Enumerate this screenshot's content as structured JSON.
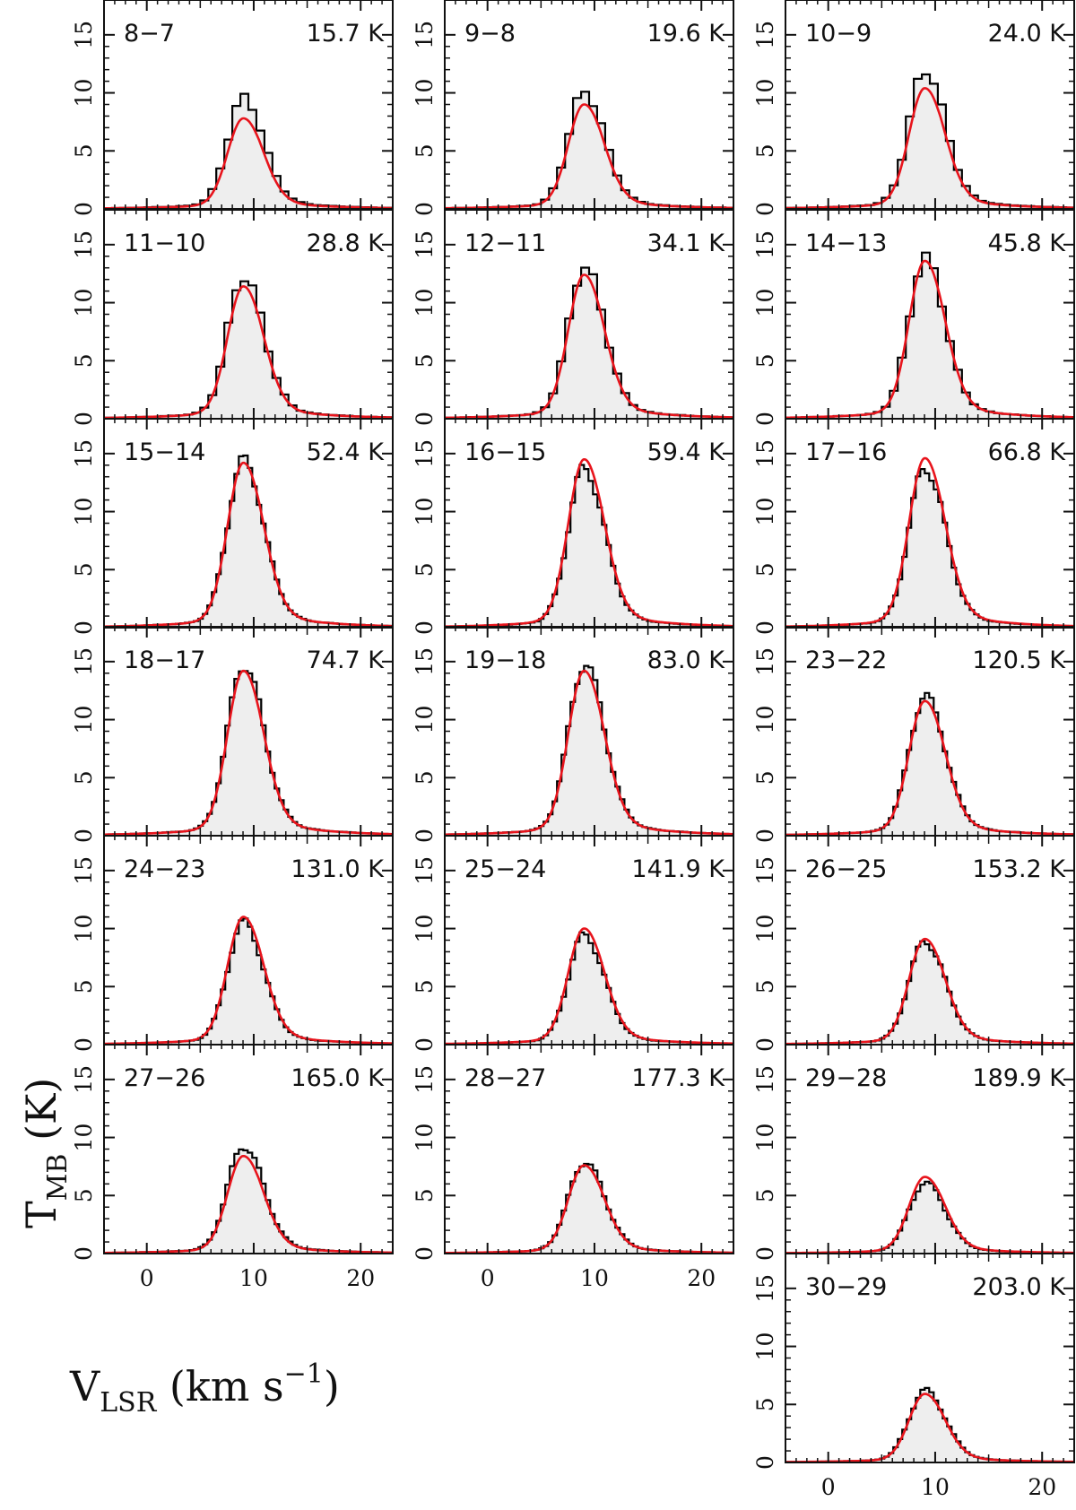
{
  "y_axis_label": {
    "main": "T",
    "sub": "MB",
    "unit": " (K)"
  },
  "x_axis_label": {
    "main": "V",
    "sub": "LSR",
    "unit_a": " (km s",
    "sup": "−1",
    "unit_b": ")"
  },
  "chart_data": {
    "type": "step-line",
    "layout": "grid of spectra, 3 columns",
    "xlim": [
      -4,
      23
    ],
    "ylim": [
      0,
      18
    ],
    "xticks": [
      0,
      10,
      20
    ],
    "yticks": [
      0,
      5,
      10,
      15
    ],
    "x_tick_labels": [
      "0",
      "10",
      "20"
    ],
    "y_tick_labels": [
      "0",
      "5",
      "10",
      "15"
    ],
    "xlabel": "V_LSR (km s^-1)",
    "ylabel": "T_MB (K)",
    "observed_style": {
      "stroke": "#000000",
      "fill": "#eeeeee"
    },
    "model_style": {
      "stroke": "#e8141c"
    },
    "panels": [
      {
        "transition": "8−7",
        "temperature": "15.7 K",
        "col": 0,
        "row": 0,
        "obs_peak": 9.6,
        "model_peak": 7.8
      },
      {
        "transition": "9−8",
        "temperature": "19.6 K",
        "col": 1,
        "row": 0,
        "obs_peak": 10.1,
        "model_peak": 9.0
      },
      {
        "transition": "10−9",
        "temperature": "24.0 K",
        "col": 2,
        "row": 0,
        "obs_peak": 12.0,
        "model_peak": 10.4
      },
      {
        "transition": "11−10",
        "temperature": "28.8 K",
        "col": 0,
        "row": 1,
        "obs_peak": 12.3,
        "model_peak": 11.4
      },
      {
        "transition": "12−11",
        "temperature": "34.1 K",
        "col": 1,
        "row": 1,
        "obs_peak": 13.1,
        "model_peak": 12.4
      },
      {
        "transition": "14−13",
        "temperature": "45.8 K",
        "col": 2,
        "row": 1,
        "obs_peak": 13.9,
        "model_peak": 13.6
      },
      {
        "transition": "15−14",
        "temperature": "52.4 K",
        "col": 0,
        "row": 2,
        "obs_peak": 14.4,
        "model_peak": 14.2
      },
      {
        "transition": "16−15",
        "temperature": "59.4 K",
        "col": 1,
        "row": 2,
        "obs_peak": 13.7,
        "model_peak": 14.5
      },
      {
        "transition": "17−16",
        "temperature": "66.8 K",
        "col": 2,
        "row": 2,
        "obs_peak": 13.8,
        "model_peak": 14.6
      },
      {
        "transition": "18−17",
        "temperature": "74.7 K",
        "col": 0,
        "row": 3,
        "obs_peak": 14.8,
        "model_peak": 14.2
      },
      {
        "transition": "19−18",
        "temperature": "83.0 K",
        "col": 1,
        "row": 3,
        "obs_peak": 14.8,
        "model_peak": 14.2
      },
      {
        "transition": "23−22",
        "temperature": "120.5 K",
        "col": 2,
        "row": 3,
        "obs_peak": 12.0,
        "model_peak": 11.6
      },
      {
        "transition": "24−23",
        "temperature": "131.0 K",
        "col": 0,
        "row": 4,
        "obs_peak": 10.5,
        "model_peak": 11.0
      },
      {
        "transition": "25−24",
        "temperature": "141.9 K",
        "col": 1,
        "row": 4,
        "obs_peak": 9.4,
        "model_peak": 10.0
      },
      {
        "transition": "26−25",
        "temperature": "153.2 K",
        "col": 2,
        "row": 4,
        "obs_peak": 8.9,
        "model_peak": 9.1
      },
      {
        "transition": "27−26",
        "temperature": "165.0 K",
        "col": 0,
        "row": 5,
        "obs_peak": 9.3,
        "model_peak": 8.4
      },
      {
        "transition": "28−27",
        "temperature": "177.3 K",
        "col": 1,
        "row": 5,
        "obs_peak": 7.9,
        "model_peak": 7.6
      },
      {
        "transition": "29−28",
        "temperature": "189.9 K",
        "col": 2,
        "row": 5,
        "obs_peak": 6.1,
        "model_peak": 6.6
      },
      {
        "transition": "30−29",
        "temperature": "203.0 K",
        "col": 2,
        "row": 6,
        "obs_peak": 6.2,
        "model_peak": 5.9
      }
    ]
  }
}
